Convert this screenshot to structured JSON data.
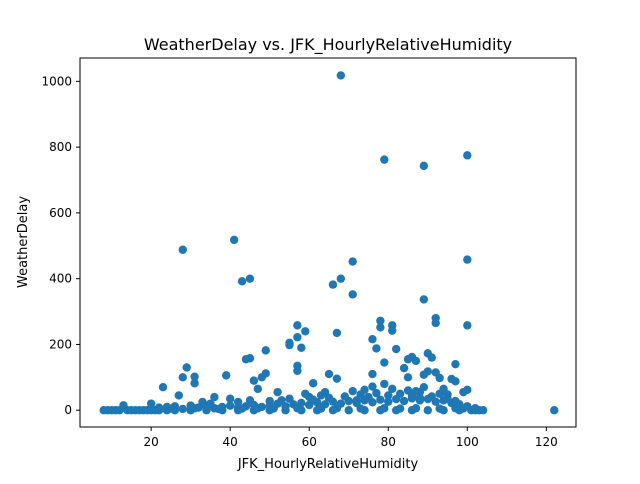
{
  "chart_data": {
    "type": "scatter",
    "title": "WeatherDelay vs. JFK_HourlyRelativeHumidity",
    "xlabel": "JFK_HourlyRelativeHumidity",
    "ylabel": "WeatherDelay",
    "xlim": [
      2,
      127.5
    ],
    "ylim": [
      -51,
      1071
    ],
    "xticks": [
      20,
      40,
      60,
      80,
      100,
      120
    ],
    "yticks": [
      0,
      200,
      400,
      600,
      800,
      1000
    ],
    "grid": false,
    "marker_color": "#1f77b4",
    "series": [
      {
        "points": [
          [
            68,
            1018
          ],
          [
            100,
            775
          ],
          [
            79,
            762
          ],
          [
            89,
            743
          ],
          [
            41,
            518
          ],
          [
            28,
            488
          ],
          [
            100,
            458
          ],
          [
            71,
            452
          ],
          [
            45,
            400
          ],
          [
            68,
            400
          ],
          [
            43,
            392
          ],
          [
            66,
            382
          ],
          [
            71,
            352
          ],
          [
            89,
            337
          ],
          [
            92,
            280
          ],
          [
            92,
            265
          ],
          [
            100,
            258
          ],
          [
            78,
            272
          ],
          [
            81,
            258
          ],
          [
            78,
            252
          ],
          [
            81,
            242
          ],
          [
            57,
            258
          ],
          [
            59,
            240
          ],
          [
            67,
            235
          ],
          [
            57,
            222
          ],
          [
            76,
            216
          ],
          [
            55,
            205
          ],
          [
            55,
            198
          ],
          [
            58,
            190
          ],
          [
            77,
            188
          ],
          [
            82,
            186
          ],
          [
            49,
            182
          ],
          [
            90,
            173
          ],
          [
            86,
            162
          ],
          [
            91,
            160
          ],
          [
            45,
            158
          ],
          [
            44,
            155
          ],
          [
            85,
            155
          ],
          [
            87,
            150
          ],
          [
            79,
            145
          ],
          [
            97,
            140
          ],
          [
            57,
            135
          ],
          [
            29,
            130
          ],
          [
            84,
            128
          ],
          [
            57,
            120
          ],
          [
            90,
            118
          ],
          [
            92,
            115
          ],
          [
            49,
            112
          ],
          [
            76,
            110
          ],
          [
            65,
            110
          ],
          [
            89,
            108
          ],
          [
            39,
            106
          ],
          [
            28,
            100
          ],
          [
            31,
            102
          ],
          [
            48,
            100
          ],
          [
            85,
            100
          ],
          [
            93,
            98
          ],
          [
            67,
            96
          ],
          [
            96,
            95
          ],
          [
            46,
            90
          ],
          [
            97,
            88
          ],
          [
            31,
            82
          ],
          [
            61,
            82
          ],
          [
            79,
            80
          ],
          [
            23,
            70
          ],
          [
            76,
            72
          ],
          [
            100,
            62
          ],
          [
            47,
            65
          ],
          [
            99,
            55
          ],
          [
            85,
            60
          ],
          [
            52,
            55
          ],
          [
            27,
            45
          ],
          [
            36,
            40
          ],
          [
            95,
            48
          ],
          [
            40,
            35
          ],
          [
            88,
            38
          ],
          [
            13,
            15
          ],
          [
            20,
            20
          ],
          [
            33,
            25
          ],
          [
            72,
            30
          ],
          [
            8,
            0
          ],
          [
            9,
            0
          ],
          [
            10,
            0
          ],
          [
            11,
            0
          ],
          [
            12,
            0
          ],
          [
            14,
            0
          ],
          [
            15,
            0
          ],
          [
            16,
            0
          ],
          [
            17,
            0
          ],
          [
            18,
            0
          ],
          [
            19,
            0
          ],
          [
            20,
            0
          ],
          [
            21,
            0
          ],
          [
            22,
            0
          ],
          [
            24,
            0
          ],
          [
            26,
            0
          ],
          [
            30,
            0
          ],
          [
            34,
            0
          ],
          [
            38,
            0
          ],
          [
            42,
            0
          ],
          [
            46,
            0
          ],
          [
            50,
            0
          ],
          [
            54,
            0
          ],
          [
            58,
            0
          ],
          [
            62,
            0
          ],
          [
            66,
            0
          ],
          [
            70,
            0
          ],
          [
            74,
            0
          ],
          [
            78,
            0
          ],
          [
            82,
            0
          ],
          [
            86,
            0
          ],
          [
            90,
            0
          ],
          [
            94,
            0
          ],
          [
            98,
            0
          ],
          [
            101,
            0
          ],
          [
            102,
            0
          ],
          [
            103,
            0
          ],
          [
            104,
            0
          ],
          [
            122,
            0
          ],
          [
            22,
            8
          ],
          [
            24,
            10
          ],
          [
            26,
            12
          ],
          [
            30,
            14
          ],
          [
            32,
            8
          ],
          [
            34,
            12
          ],
          [
            36,
            6
          ],
          [
            38,
            10
          ],
          [
            40,
            14
          ],
          [
            42,
            8
          ],
          [
            44,
            12
          ],
          [
            46,
            16
          ],
          [
            48,
            10
          ],
          [
            50,
            14
          ],
          [
            52,
            20
          ],
          [
            54,
            12
          ],
          [
            56,
            18
          ],
          [
            58,
            22
          ],
          [
            60,
            16
          ],
          [
            62,
            24
          ],
          [
            64,
            18
          ],
          [
            66,
            26
          ],
          [
            68,
            20
          ],
          [
            70,
            28
          ],
          [
            72,
            22
          ],
          [
            74,
            30
          ],
          [
            76,
            24
          ],
          [
            78,
            32
          ],
          [
            80,
            26
          ],
          [
            82,
            34
          ],
          [
            84,
            28
          ],
          [
            86,
            36
          ],
          [
            88,
            30
          ],
          [
            90,
            34
          ],
          [
            92,
            26
          ],
          [
            94,
            30
          ],
          [
            96,
            22
          ],
          [
            98,
            18
          ],
          [
            100,
            12
          ],
          [
            102,
            6
          ],
          [
            35,
            20
          ],
          [
            45,
            30
          ],
          [
            55,
            35
          ],
          [
            60,
            40
          ],
          [
            63,
            45
          ],
          [
            65,
            38
          ],
          [
            69,
            42
          ],
          [
            73,
            48
          ],
          [
            75,
            40
          ],
          [
            77,
            52
          ],
          [
            80,
            45
          ],
          [
            83,
            50
          ],
          [
            86,
            44
          ],
          [
            88,
            55
          ],
          [
            91,
            42
          ],
          [
            93,
            50
          ],
          [
            95,
            35
          ],
          [
            97,
            28
          ],
          [
            42,
            25
          ],
          [
            50,
            28
          ],
          [
            53,
            30
          ],
          [
            61,
            32
          ],
          [
            64,
            55
          ],
          [
            71,
            58
          ],
          [
            74,
            62
          ],
          [
            81,
            65
          ],
          [
            87,
            58
          ],
          [
            89,
            70
          ],
          [
            94,
            65
          ],
          [
            59,
            50
          ],
          [
            25,
            5
          ],
          [
            28,
            4
          ],
          [
            31,
            6
          ],
          [
            37,
            4
          ],
          [
            43,
            5
          ],
          [
            47,
            6
          ],
          [
            51,
            5
          ],
          [
            57,
            6
          ],
          [
            63,
            5
          ],
          [
            67,
            6
          ],
          [
            73,
            5
          ],
          [
            79,
            6
          ],
          [
            83,
            5
          ],
          [
            87,
            6
          ],
          [
            93,
            5
          ],
          [
            97,
            6
          ],
          [
            99,
            5
          ]
        ]
      }
    ]
  }
}
